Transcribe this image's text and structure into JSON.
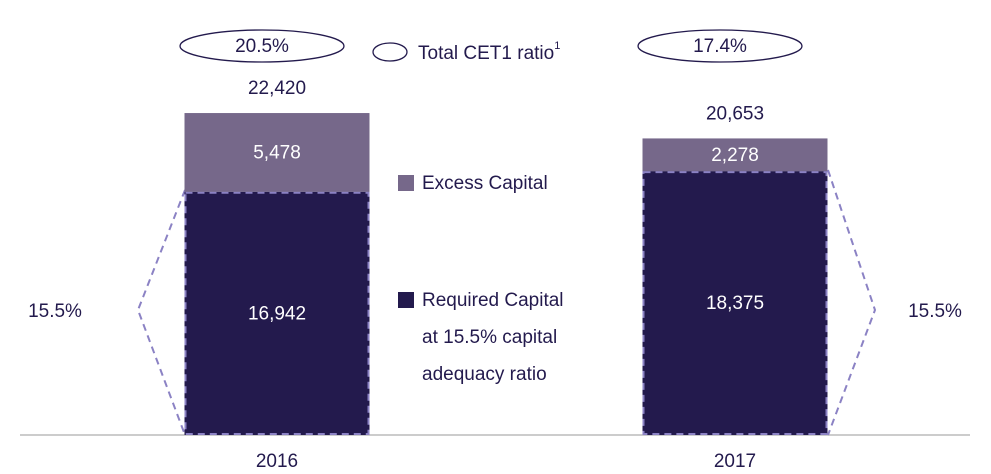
{
  "chart_data": {
    "type": "stacked_bar",
    "categories": [
      "2016",
      "2017"
    ],
    "ylim": [
      0,
      25000
    ],
    "series": [
      {
        "name": "Required Capital at 15.5% capital adequacy ratio",
        "color": "#231a4d",
        "values": [
          16942,
          18375
        ],
        "value_labels": [
          "16,942",
          "18,375"
        ]
      },
      {
        "name": "Excess Capital",
        "color": "#76688a",
        "values": [
          5478,
          2278
        ],
        "value_labels": [
          "5,478",
          "2,278"
        ]
      }
    ],
    "totals": {
      "values": [
        22420,
        20653
      ],
      "value_labels": [
        "22,420",
        "20,653"
      ]
    },
    "cet1_ratio": {
      "name": "Total CET1 ratio",
      "footnote": "1",
      "values": [
        20.5,
        17.4
      ],
      "value_labels": [
        "20.5%",
        "17.4%"
      ]
    },
    "bracket_labels": [
      "15.5%",
      "15.5%"
    ]
  }
}
